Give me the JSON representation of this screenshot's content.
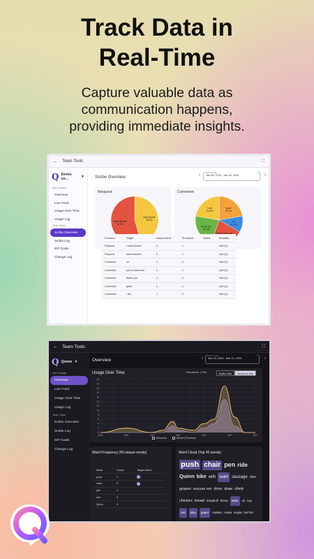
{
  "hero": {
    "title": "Track Data in\nReal-Time",
    "subtitle": "Capture valuable data as\ncommunication happens,\nproviding immediate insights."
  },
  "colors": {
    "brand_purple": "#5b38c8",
    "pie_orange": "#f3a33a",
    "pie_red": "#e3533f",
    "pie_green": "#69b545",
    "pie_blue": "#3f8be0",
    "pie_yellow": "#f5c741"
  },
  "light": {
    "topbar_title": "Team Tools",
    "account": "Demo us...",
    "sections": {
      "aac_usage": "AAC Usage",
      "team_tools": "Team Tools"
    },
    "nav": [
      "Overview",
      "Live Feed",
      "Usage Over Time",
      "Usage Log",
      "Scribe Overview",
      "Scribe Log",
      "IEP Goals",
      "Change Log"
    ],
    "page_title": "Scribe Overview",
    "date_label": "Date Range",
    "date_value": "Jan 06, 2024 - Jan 06, 2024",
    "request_title": "Request",
    "comment_title": "Comment",
    "request_pie": [
      {
        "label": "'want phone'",
        "pct": "45.5%",
        "value": 45.5,
        "color": "#f5c741"
      },
      {
        "label": "'want blanket'",
        "pct": "54.5%",
        "value": 54.5,
        "color": "#e3533f"
      }
    ],
    "comment_pie": [
      {
        "label": "'good'",
        "pct": "22.2%",
        "value": 22.2,
        "color": "#f3a33a"
      },
      {
        "label": "'no'",
        "pct": "11.1%",
        "value": 11.1,
        "color": "#3f8be0"
      },
      {
        "label": "'you're welcome'",
        "pct": "22.2%",
        "value": 22.2,
        "color": "#e3533f"
      },
      {
        "label": "'thank you'",
        "pct": "22.2%",
        "value": 22.2,
        "color": "#69b545"
      },
      {
        "label": "'I am'",
        "pct": "22.2%",
        "value": 22.2,
        "color": "#f5c741"
      }
    ],
    "table": {
      "headers": [
        "Function",
        "Target",
        "Independent",
        "Prompted",
        "Notes",
        "Modality"
      ],
      "rows": [
        [
          "Request",
          "I want phone",
          "0",
          "1",
          "",
          "AAC(1)"
        ],
        [
          "Request",
          "want blanket",
          "0",
          "1",
          "",
          "AAC(1)"
        ],
        [
          "Comment",
          "no",
          "1",
          "0",
          "",
          "AAC(1)"
        ],
        [
          "Comment",
          "you're welcome",
          "0",
          "1",
          "",
          "AAC(1)"
        ],
        [
          "Comment",
          "thank you",
          "1",
          "0",
          "",
          "AAC(1)"
        ],
        [
          "Comment",
          "good",
          "0",
          "1",
          "",
          "AAC(1)"
        ],
        [
          "Comment",
          "I am",
          "1",
          "0",
          "",
          "AAC(1)"
        ]
      ]
    }
  },
  "dark": {
    "topbar_title": "Team Tools",
    "account": "Quinn",
    "sections": {
      "aac_usage": "AAC Usage",
      "team_tools": "Team Tools"
    },
    "nav": [
      "Overview",
      "Live Feed",
      "Usage Over Time",
      "Usage Log",
      "Scribe Overview",
      "Scribe Log",
      "IEP Goals",
      "Change Log"
    ],
    "page_title": "Overview",
    "date_label": "Date Range",
    "date_value": "Mar 15, 2023 - Mar 21, 2023",
    "usage_title": "Usage Over Time",
    "granularity": "Granularity: 2 Hrs",
    "toggle_a": "Button Hits",
    "toggle_b": "Sentence Hits",
    "legend_a": "Behavior",
    "legend_b": "Model (Teacher)",
    "word_freq_title": "Word Frequency (40 unique words)",
    "word_headers": [
      "Word",
      "Count",
      "Target Word"
    ],
    "word_rows": [
      {
        "word": "push",
        "count": "7",
        "target": true
      },
      {
        "word": "chair",
        "count": "5",
        "target": true
      },
      {
        "word": "pen",
        "count": "4",
        "target": false
      },
      {
        "word": "ride",
        "count": "3",
        "target": false
      },
      {
        "word": "Quinn",
        "count": "3",
        "target": false
      }
    ],
    "cloud_title": "Word Cloud (Top 40 words)",
    "cloud": [
      {
        "w": "push",
        "size": 11,
        "hl": true
      },
      {
        "w": "chair",
        "size": 10,
        "hl": true
      },
      {
        "w": "pen",
        "size": 9
      },
      {
        "w": "ride",
        "size": 8
      },
      {
        "w": "Quinn",
        "size": 7.5
      },
      {
        "w": "bike",
        "size": 7
      },
      {
        "w": "with",
        "size": 6
      },
      {
        "w": "want",
        "size": 6,
        "hl": true
      },
      {
        "w": "sausage",
        "size": 6
      },
      {
        "w": "rice",
        "size": 5.5
      },
      {
        "w": "grapes",
        "size": 5.5
      },
      {
        "w": "excuse me",
        "size": 5.5
      },
      {
        "w": "drive",
        "size": 5.5
      },
      {
        "w": "draw",
        "size": 5.5
      },
      {
        "w": "climb",
        "size": 5.5
      },
      {
        "w": "chicken",
        "size": 5.5
      },
      {
        "w": "bread",
        "size": 5.5
      },
      {
        "w": "treadmill",
        "size": 4.5
      },
      {
        "w": "throw",
        "size": 4.5
      },
      {
        "w": "table",
        "size": 4.5,
        "hl": true
      },
      {
        "w": "sit",
        "size": 4.5
      },
      {
        "w": "say",
        "size": 4.5
      },
      {
        "w": "red",
        "size": 4.5,
        "hl": true
      },
      {
        "w": "play",
        "size": 4.5,
        "hl": true
      },
      {
        "w": "paper",
        "size": 4.5,
        "hl": true
      },
      {
        "w": "marker",
        "size": 4.5
      },
      {
        "w": "make",
        "size": 4.5
      },
      {
        "w": "Kayla",
        "size": 4.5
      },
      {
        "w": "hel hel",
        "size": 4.5
      }
    ],
    "chart_data": {
      "type": "area",
      "title": "Usage Over Time",
      "ylim": [
        0,
        24
      ],
      "yticks": [
        "0",
        "2",
        "4",
        "6",
        "8",
        "10",
        "12",
        "14",
        "16",
        "18",
        "20",
        "22",
        "24"
      ],
      "xticks": [
        "3/15",
        "3/16",
        "3/17",
        "3/18",
        "3/19",
        "3/20",
        "3/21"
      ],
      "series": [
        {
          "name": "Behavior",
          "color": "#ffd27a",
          "x": [
            0,
            1,
            2,
            2.4,
            2.8,
            3,
            3.6,
            4,
            4.4,
            4.8,
            5.2,
            5.6,
            6
          ],
          "values": [
            0,
            2,
            0,
            1,
            5,
            2,
            1,
            4,
            6,
            21,
            7,
            0,
            0
          ]
        },
        {
          "name": "Model (Teacher)",
          "color": "#7c6fb4",
          "x": [
            0,
            1,
            2,
            2.4,
            2.8,
            3,
            3.6,
            4,
            4.4,
            4.8,
            5.2,
            5.6,
            6
          ],
          "values": [
            0,
            0,
            0,
            0,
            3,
            1,
            0,
            2,
            4,
            15,
            3,
            0,
            0
          ]
        }
      ]
    }
  }
}
